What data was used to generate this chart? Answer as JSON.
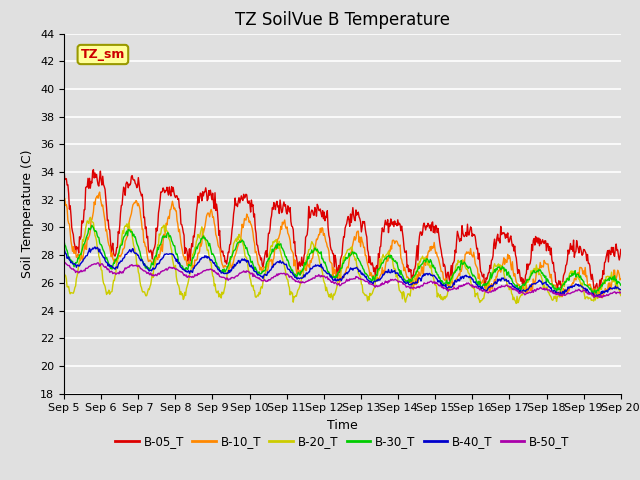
{
  "title": "TZ SoilVue B Temperature",
  "xlabel": "Time",
  "ylabel": "Soil Temperature (C)",
  "ylim": [
    18,
    44
  ],
  "x_tick_labels": [
    "Sep 5",
    "Sep 6",
    "Sep 7",
    "Sep 8",
    "Sep 9",
    "Sep 10",
    "Sep 11",
    "Sep 12",
    "Sep 13",
    "Sep 14",
    "Sep 15",
    "Sep 16",
    "Sep 17",
    "Sep 18",
    "Sep 19",
    "Sep 20"
  ],
  "series_colors": [
    "#dd0000",
    "#ff8800",
    "#cccc00",
    "#00cc00",
    "#0000cc",
    "#aa00aa"
  ],
  "series_labels": [
    "B-05_T",
    "B-10_T",
    "B-20_T",
    "B-30_T",
    "B-40_T",
    "B-50_T"
  ],
  "legend_label_box": "TZ_sm",
  "background_color": "#e0e0e0",
  "plot_bg_color": "#e0e0e0",
  "grid_color": "#ffffff",
  "title_fontsize": 12,
  "axis_label_fontsize": 9,
  "tick_fontsize": 8
}
